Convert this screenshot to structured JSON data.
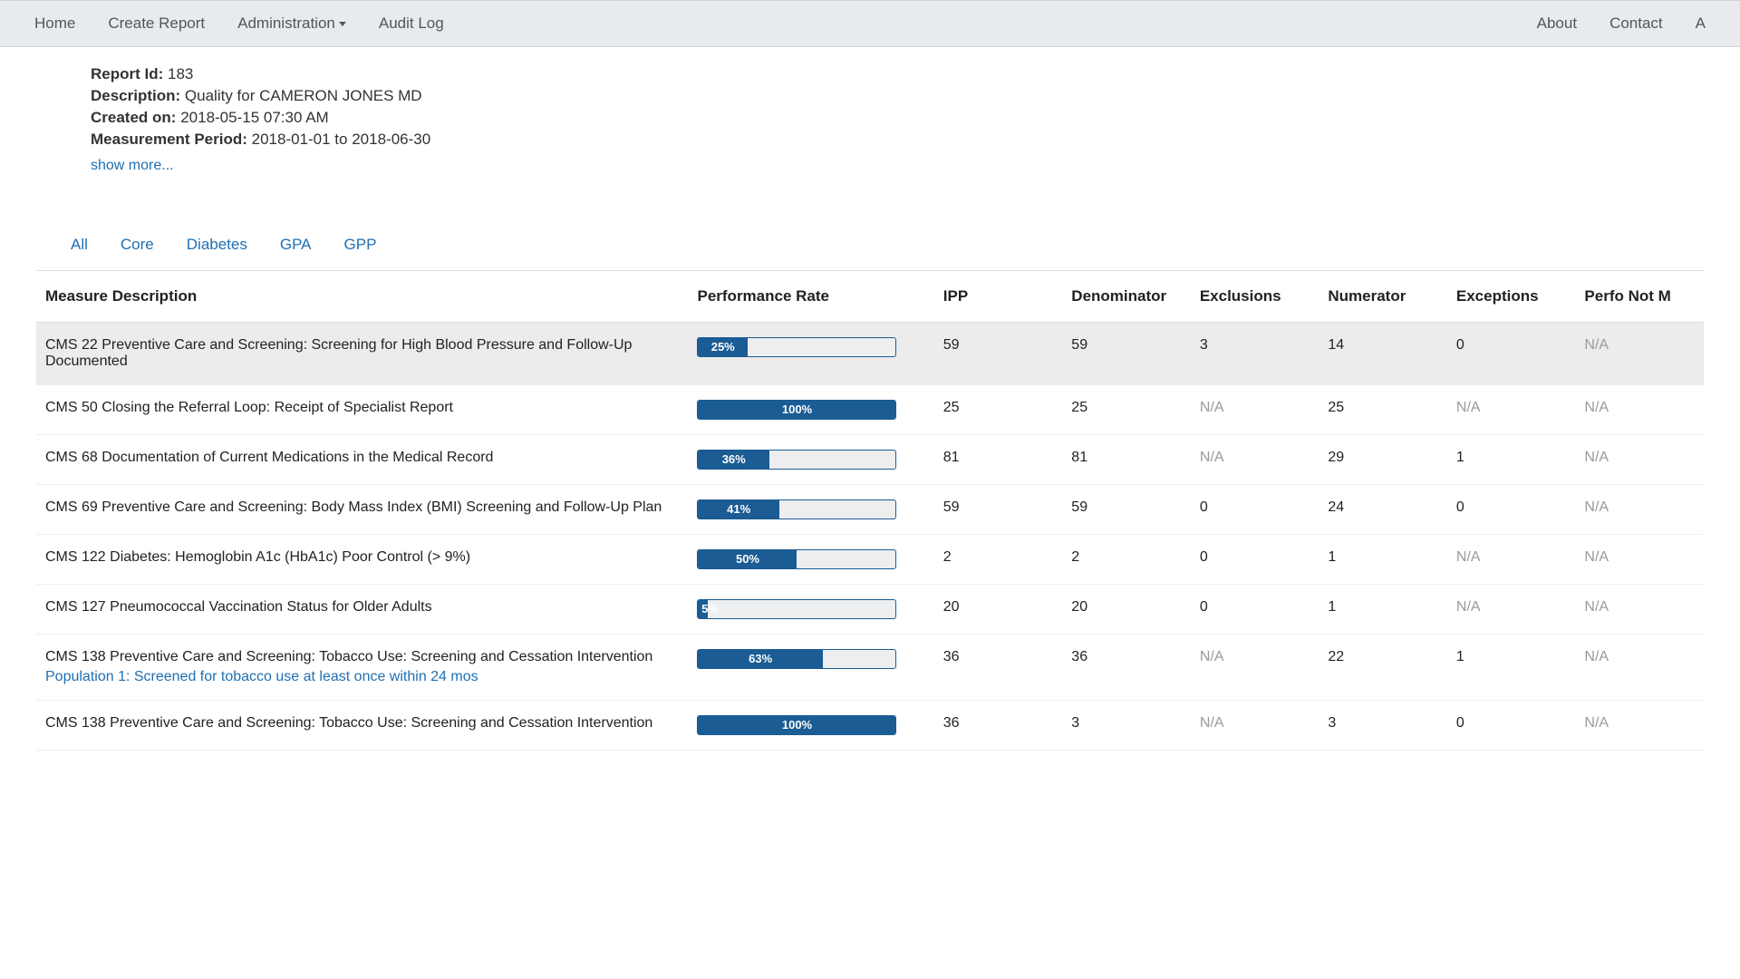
{
  "nav": {
    "left": [
      "Home",
      "Create Report",
      "Administration",
      "Audit Log"
    ],
    "dropdown_index": 2,
    "right": [
      "About",
      "Contact",
      "A"
    ]
  },
  "meta": {
    "report_id_label": "Report Id:",
    "report_id": "183",
    "description_label": "Description:",
    "description": "Quality for CAMERON JONES MD",
    "created_label": "Created on:",
    "created": "2018-05-15 07:30 AM",
    "period_label": "Measurement Period:",
    "period": "2018-01-01 to 2018-06-30",
    "show_more": "show more..."
  },
  "tabs": [
    "All",
    "Core",
    "Diabetes",
    "GPA",
    "GPP"
  ],
  "columns": [
    "Measure Description",
    "Performance Rate",
    "IPP",
    "Denominator",
    "Exclusions",
    "Numerator",
    "Exceptions",
    "Perfo Not M"
  ],
  "progress_color": "#1b5c94",
  "rows": [
    {
      "desc": "CMS 22 Preventive Care and Screening: Screening for High Blood Pressure and Follow-Up Documented",
      "perf": 25,
      "ipp": "59",
      "denom": "59",
      "excl": "3",
      "num": "14",
      "exc": "0",
      "pnm": "N/A",
      "highlight": true
    },
    {
      "desc": "CMS 50 Closing the Referral Loop: Receipt of Specialist Report",
      "perf": 100,
      "ipp": "25",
      "denom": "25",
      "excl": "N/A",
      "num": "25",
      "exc": "N/A",
      "pnm": "N/A"
    },
    {
      "desc": "CMS 68 Documentation of Current Medications in the Medical Record",
      "perf": 36,
      "ipp": "81",
      "denom": "81",
      "excl": "N/A",
      "num": "29",
      "exc": "1",
      "pnm": "N/A"
    },
    {
      "desc": "CMS 69 Preventive Care and Screening: Body Mass Index (BMI) Screening and Follow-Up Plan",
      "perf": 41,
      "ipp": "59",
      "denom": "59",
      "excl": "0",
      "num": "24",
      "exc": "0",
      "pnm": "N/A"
    },
    {
      "desc": "CMS 122 Diabetes: Hemoglobin A1c (HbA1c) Poor Control (> 9%)",
      "perf": 50,
      "ipp": "2",
      "denom": "2",
      "excl": "0",
      "num": "1",
      "exc": "N/A",
      "pnm": "N/A"
    },
    {
      "desc": "CMS 127 Pneumococcal Vaccination Status for Older Adults",
      "perf": 5,
      "ipp": "20",
      "denom": "20",
      "excl": "0",
      "num": "1",
      "exc": "N/A",
      "pnm": "N/A"
    },
    {
      "desc": "CMS 138 Preventive Care and Screening: Tobacco Use: Screening and Cessation Intervention",
      "sublink": "Population 1: Screened for tobacco use at least once within 24 mos",
      "perf": 63,
      "ipp": "36",
      "denom": "36",
      "excl": "N/A",
      "num": "22",
      "exc": "1",
      "pnm": "N/A"
    },
    {
      "desc": "CMS 138 Preventive Care and Screening: Tobacco Use: Screening and Cessation Intervention",
      "perf": 100,
      "ipp": "36",
      "denom": "3",
      "excl": "N/A",
      "num": "3",
      "exc": "0",
      "pnm": "N/A"
    }
  ]
}
